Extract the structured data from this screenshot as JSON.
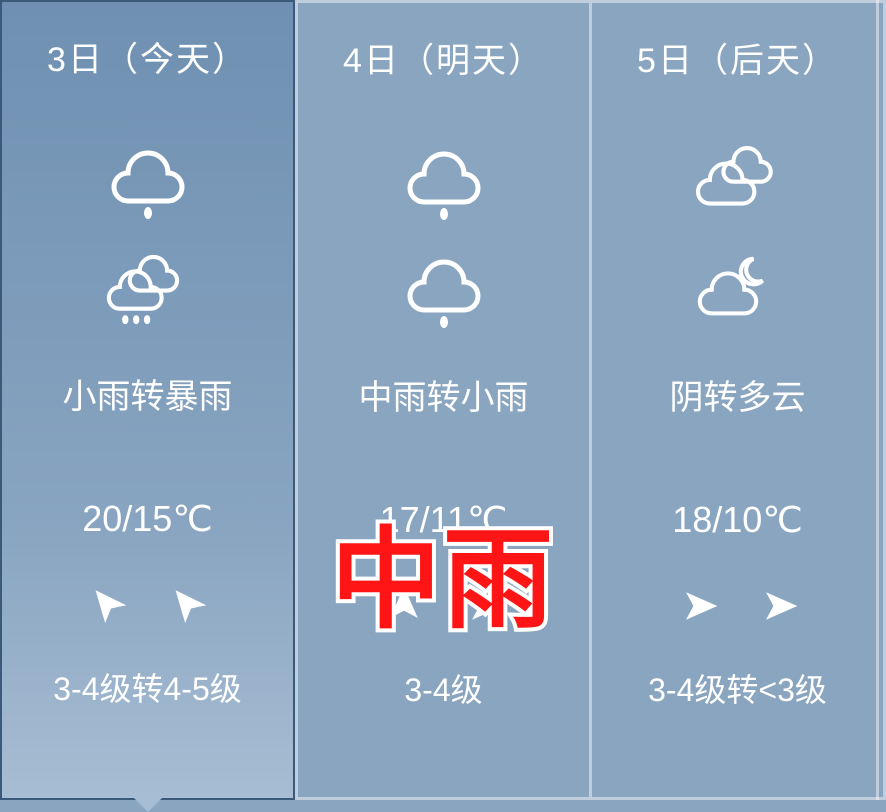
{
  "overlay": "中雨",
  "days": [
    {
      "date_label": "3日（今天）",
      "icon_day": "light-rain",
      "icon_night": "heavy-rain",
      "condition": "小雨转暴雨",
      "temperature": "20/15℃",
      "wind_arrow_left_rotation": -40,
      "wind_arrow_right_rotation": -40,
      "wind_text": "3-4级转4-5级",
      "active": true
    },
    {
      "date_label": "4日（明天）",
      "icon_day": "light-rain",
      "icon_night": "light-rain",
      "condition": "中雨转小雨",
      "temperature": "17/11℃",
      "wind_arrow_left_rotation": 0,
      "wind_arrow_right_rotation": 90,
      "wind_text": "3-4级",
      "active": false
    },
    {
      "date_label": "5日（后天）",
      "icon_day": "overcast",
      "icon_night": "cloudy-night",
      "condition": "阴转多云",
      "temperature": "18/10℃",
      "wind_arrow_left_rotation": 90,
      "wind_arrow_right_rotation": 90,
      "wind_text": "3-4级转<3级",
      "active": false
    }
  ],
  "style": {
    "card_bg_inactive": "#8aa5c0",
    "card_gradient_top": "#6f90b2",
    "card_gradient_bottom": "#a7bdd3",
    "border_color": "rgba(255,255,255,0.45)",
    "active_border": "#3b5a7a",
    "text_color": "#ffffff",
    "overlay_color": "#ff1515",
    "overlay_stroke": "#ffffff",
    "date_fontsize": 34,
    "condition_fontsize": 34,
    "temp_fontsize": 36,
    "wind_fontsize": 32,
    "overlay_fontsize": 110
  }
}
